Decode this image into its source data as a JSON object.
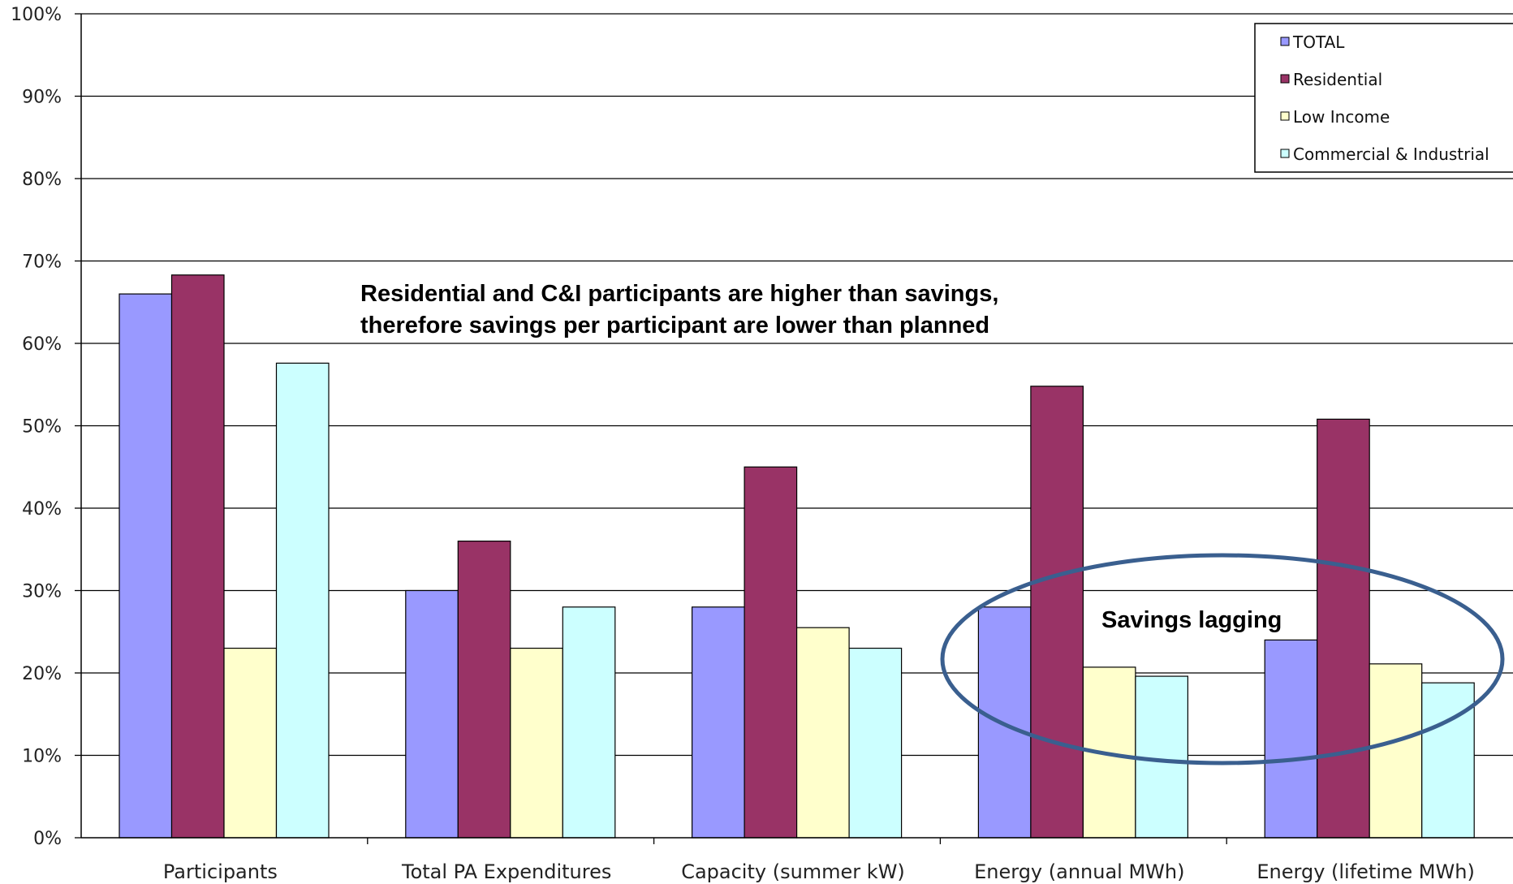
{
  "chart_data": {
    "type": "bar",
    "title": "",
    "xlabel": "",
    "ylabel": "",
    "ylim": [
      0,
      100
    ],
    "y_ticks": [
      "0%",
      "10%",
      "20%",
      "30%",
      "40%",
      "50%",
      "60%",
      "70%",
      "80%",
      "90%",
      "100%"
    ],
    "grid": true,
    "legend_position": "top-right",
    "categories": [
      "Participants",
      "Total PA Expenditures",
      "Capacity (summer kW)",
      "Energy (annual MWh)",
      "Energy (lifetime MWh)"
    ],
    "series": [
      {
        "name": "TOTAL",
        "color": "#9999ff",
        "values": [
          66,
          30,
          28,
          28,
          24
        ]
      },
      {
        "name": "Residential",
        "color": "#993366",
        "values": [
          68.3,
          36,
          45,
          54.8,
          50.8
        ]
      },
      {
        "name": "Low Income",
        "color": "#ffffcc",
        "values": [
          23,
          23,
          25.5,
          20.7,
          21.1
        ]
      },
      {
        "name": "Commercial & Industrial",
        "color": "#ccffff",
        "values": [
          57.6,
          28,
          23,
          19.6,
          18.8
        ]
      }
    ],
    "annotations": [
      {
        "line1": "Residential and C&I participants are higher than savings,",
        "line2": "therefore savings per participant are lower than planned"
      },
      {
        "text": "Savings lagging",
        "circled_categories": [
          "Energy (annual MWh)",
          "Energy (lifetime MWh)"
        ]
      }
    ]
  }
}
